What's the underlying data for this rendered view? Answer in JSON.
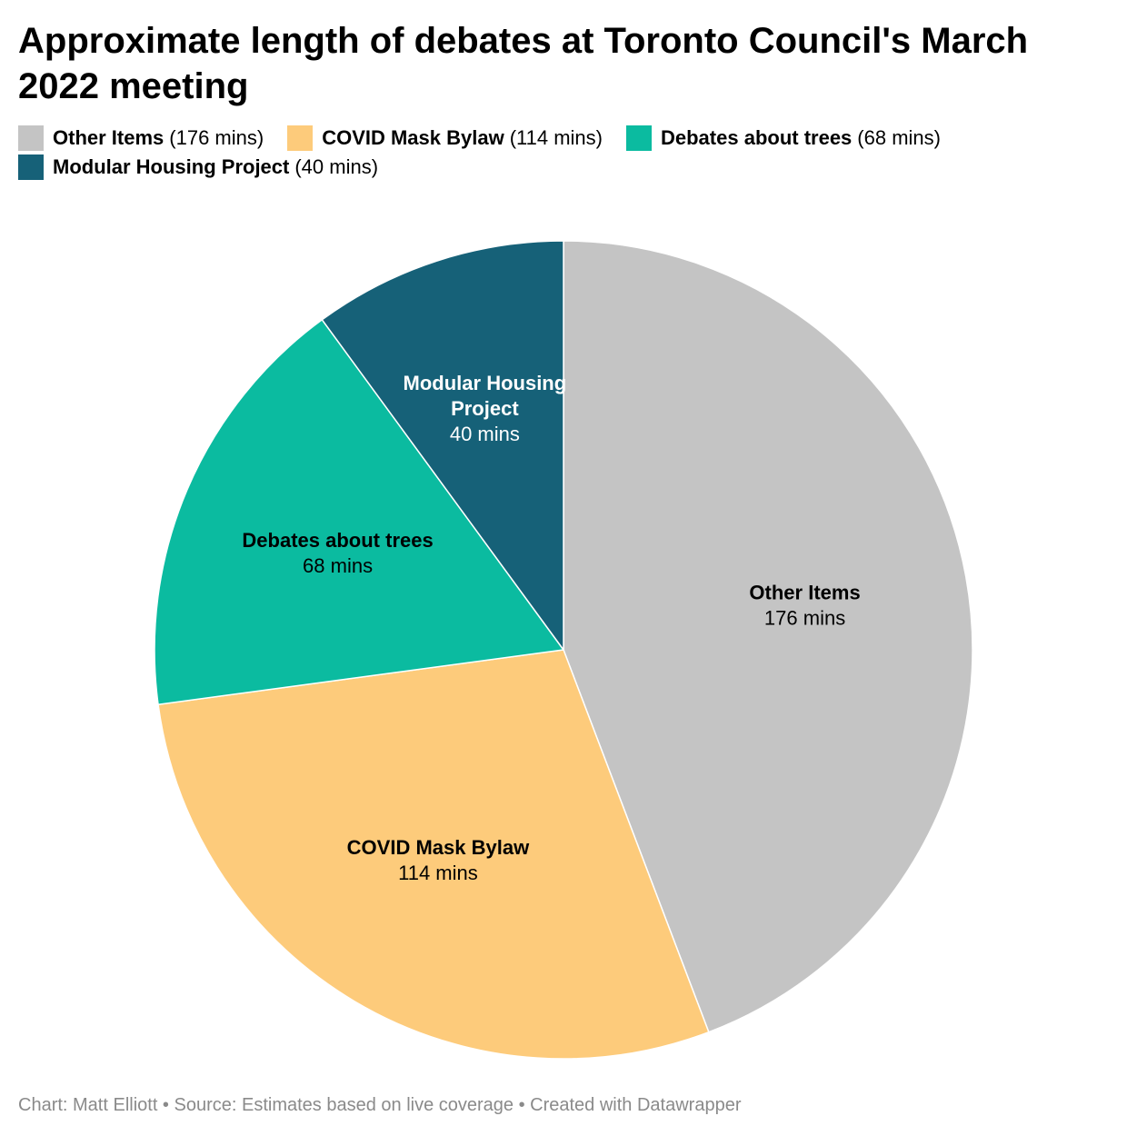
{
  "title": "Approximate length of debates at Toronto Council's March 2022 meeting",
  "chart_data": {
    "type": "pie",
    "unit": "mins",
    "start_angle": "12 o'clock, clockwise",
    "categories": [
      "Other Items",
      "COVID Mask Bylaw",
      "Debates about trees",
      "Modular Housing Project"
    ],
    "values": [
      176,
      114,
      68,
      40
    ],
    "value_labels": [
      "176 mins",
      "114 mins",
      "68 mins",
      "40 mins"
    ],
    "legend_values": [
      "(176 mins)",
      "(114 mins)",
      "(68 mins)",
      "(40 mins)"
    ],
    "colors": [
      "#c4c4c4",
      "#fdcb7b",
      "#0bbba0",
      "#166178"
    ],
    "label_colors": [
      "#000000",
      "#000000",
      "#000000",
      "#ffffff"
    ],
    "legend": "top-left"
  },
  "footer": "Chart: Matt Elliott • Source: Estimates based on live coverage • Created with Datawrapper"
}
